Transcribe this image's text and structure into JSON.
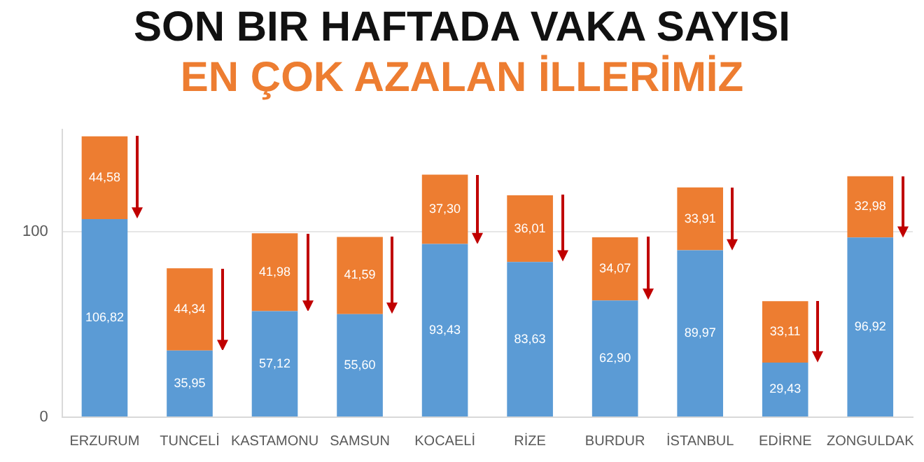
{
  "chart_data": {
    "type": "bar",
    "title": "SON BIR HAFTADA VAKA SAYISI",
    "subtitle": "EN ÇOK AZALAN İLLERİMİZ",
    "categories": [
      "ERZURUM",
      "TUNCELİ",
      "KASTAMONU",
      "SAMSUN",
      "KOCAELİ",
      "RİZE",
      "BURDUR",
      "İSTANBUL",
      "EDİRNE",
      "ZONGULDAK"
    ],
    "series": [
      {
        "color": "#5b9bd5",
        "values": [
          106.82,
          35.95,
          57.12,
          55.6,
          93.43,
          83.63,
          62.9,
          89.97,
          29.43,
          96.92
        ],
        "value_labels": [
          "106,82",
          "35,95",
          "57,12",
          "55,60",
          "93,43",
          "83,63",
          "62,90",
          "89,97",
          "29,43",
          "96,92"
        ]
      },
      {
        "color": "#ed7d31",
        "values": [
          44.58,
          44.34,
          41.98,
          41.59,
          37.3,
          36.01,
          34.07,
          33.91,
          33.11,
          32.98
        ],
        "value_labels": [
          "44,58",
          "44,34",
          "41,98",
          "41,59",
          "37,30",
          "36,01",
          "34,07",
          "33,91",
          "33,11",
          "32,98"
        ]
      }
    ],
    "stacked": true,
    "ylim": [
      0,
      155
    ],
    "yticks": [
      0,
      100
    ],
    "grid": "y",
    "legend": false
  }
}
